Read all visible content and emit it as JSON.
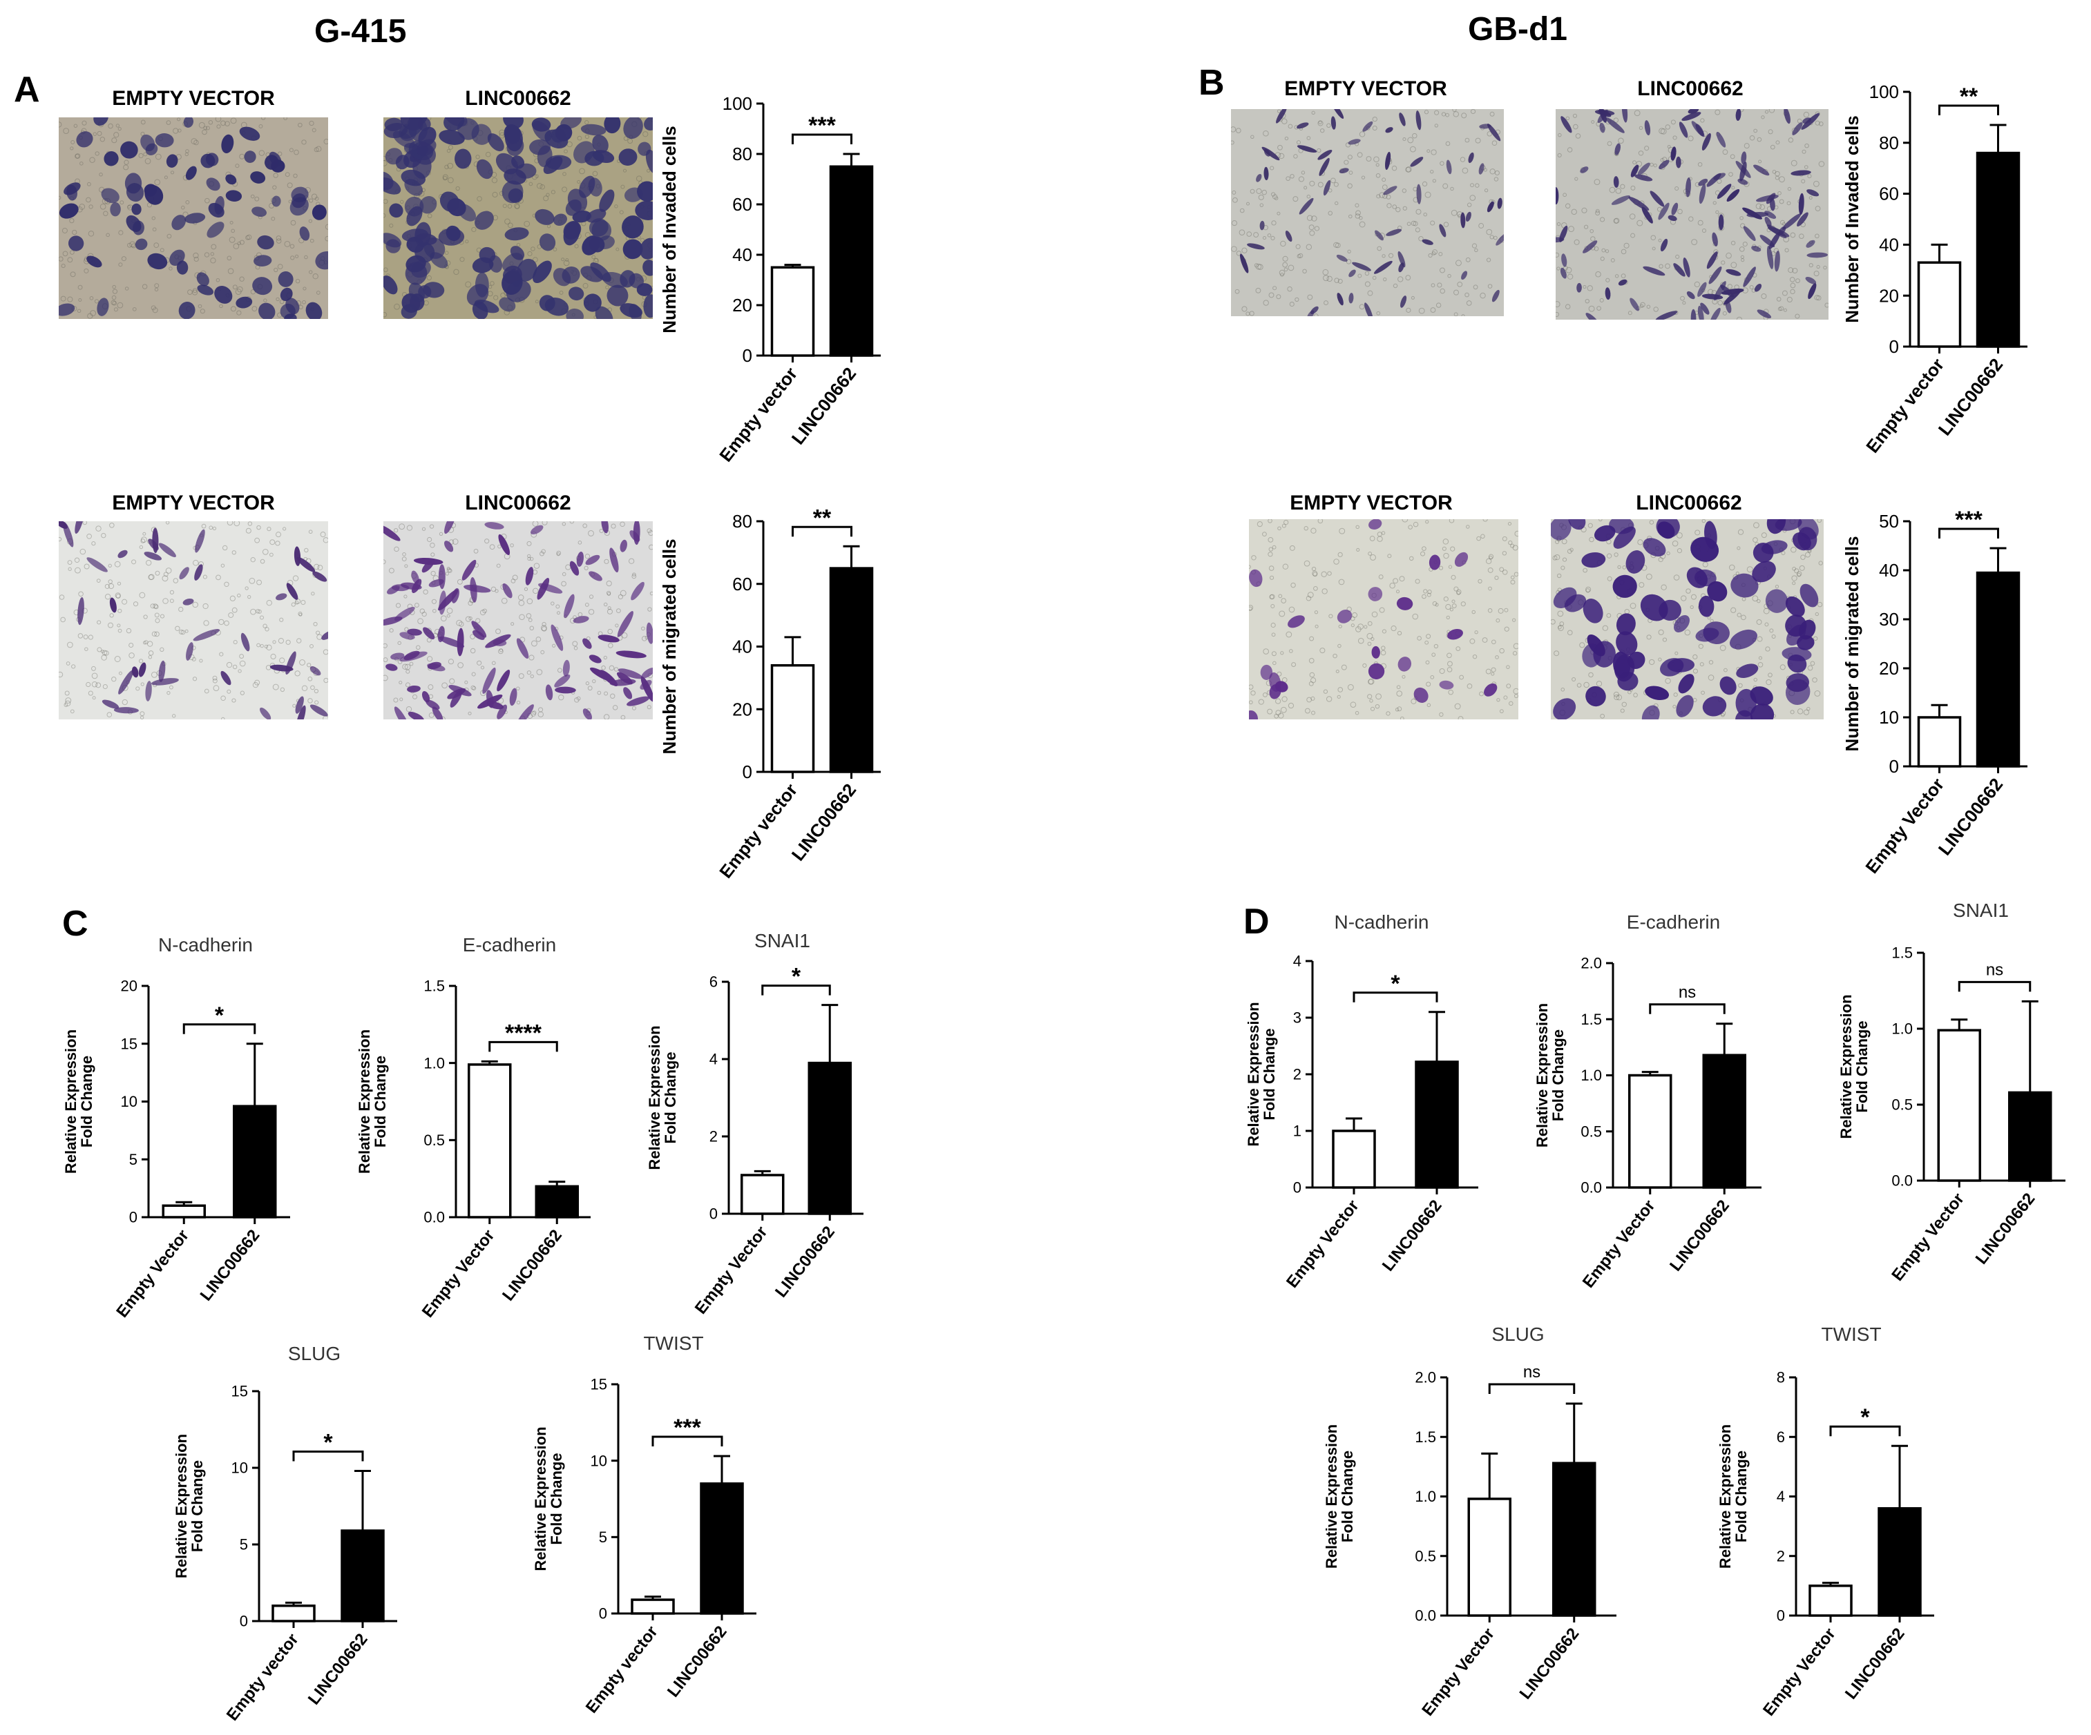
{
  "headings": {
    "left": "G-415",
    "right": "GB-d1"
  },
  "panel_letters": {
    "a": "A",
    "b": "B",
    "c": "C",
    "d": "D"
  },
  "image_captions": {
    "a_inv_empty": "EMPTY VECTOR",
    "a_inv_linc": "LINC00662",
    "a_mig_empty": "EMPTY VECTOR",
    "a_mig_linc": "LINC00662",
    "b_inv_empty": "EMPTY VECTOR",
    "b_inv_linc": "LINC00662",
    "b_mig_empty": "EMPTY VECTOR",
    "b_mig_linc": "LINC00662"
  },
  "colors": {
    "bar_empty": "#ffffff",
    "bar_linc": "#000000",
    "stroke": "#000000",
    "microscopy_bg_a": "#b3aa9a",
    "microscopy_bg_b": "#c9c9c4",
    "stain": "#3b2f6e"
  },
  "chart_data": [
    {
      "id": "A1",
      "type": "bar",
      "categories": [
        "Empty vector",
        "LINC00662"
      ],
      "values": [
        35,
        75
      ],
      "errors": [
        1,
        5
      ],
      "ylabel": "Number of Invaded cells",
      "ylim": [
        0,
        100
      ],
      "yticks": [
        0,
        20,
        40,
        60,
        80,
        100
      ],
      "significance": "***",
      "title": ""
    },
    {
      "id": "A2",
      "type": "bar",
      "categories": [
        "Empty vector",
        "LINC00662"
      ],
      "values": [
        34,
        65
      ],
      "errors": [
        9,
        7
      ],
      "ylabel": "Number of migrated cells",
      "ylim": [
        0,
        80
      ],
      "yticks": [
        0,
        20,
        40,
        60,
        80
      ],
      "significance": "**",
      "title": ""
    },
    {
      "id": "B1",
      "type": "bar",
      "categories": [
        "Empty vector",
        "LINC00662"
      ],
      "values": [
        33,
        76
      ],
      "errors": [
        7,
        11
      ],
      "ylabel": "Number of Invaded cells",
      "ylim": [
        0,
        100
      ],
      "yticks": [
        0,
        20,
        40,
        60,
        80,
        100
      ],
      "significance": "**",
      "title": ""
    },
    {
      "id": "B2",
      "type": "bar",
      "categories": [
        "Empty Vector",
        "LINC00662"
      ],
      "values": [
        10,
        39.5
      ],
      "errors": [
        2.5,
        5
      ],
      "ylabel": "Number of migrated cells",
      "ylim": [
        0,
        50
      ],
      "yticks": [
        0,
        10,
        20,
        30,
        40,
        50
      ],
      "significance": "***",
      "title": ""
    },
    {
      "id": "C1",
      "type": "bar",
      "categories": [
        "Empty Vector",
        "LINC00662"
      ],
      "values": [
        1,
        9.6
      ],
      "errors": [
        0.3,
        5.4
      ],
      "ylabel": "Relative Expression|Fold Change",
      "ylim": [
        0,
        20
      ],
      "yticks": [
        0,
        5,
        10,
        15,
        20
      ],
      "significance": "*",
      "title": "N-cadherin"
    },
    {
      "id": "C2",
      "type": "bar",
      "categories": [
        "Empty Vector",
        "LINC00662"
      ],
      "values": [
        0.99,
        0.2
      ],
      "errors": [
        0.02,
        0.03
      ],
      "ylabel": "Relative Expression|Fold Change",
      "ylim": [
        0,
        1.5
      ],
      "yticks": [
        0,
        0.5,
        1.0,
        1.5
      ],
      "tickFormat": 1,
      "significance": "****",
      "title": "E-cadherin"
    },
    {
      "id": "C3",
      "type": "bar",
      "categories": [
        "Empty Vector",
        "LINC00662"
      ],
      "values": [
        1,
        3.9
      ],
      "errors": [
        0.1,
        1.5
      ],
      "ylabel": "Relative Expression|Fold Change",
      "ylim": [
        0,
        6
      ],
      "yticks": [
        0,
        2,
        4,
        6
      ],
      "significance": "*",
      "title": "SNAI1"
    },
    {
      "id": "C4",
      "type": "bar",
      "categories": [
        "Empty vector",
        "LINC00662"
      ],
      "values": [
        1,
        5.9
      ],
      "errors": [
        0.2,
        3.9
      ],
      "ylabel": "Relative Expression|Fold Change",
      "ylim": [
        0,
        15
      ],
      "yticks": [
        0,
        5,
        10,
        15
      ],
      "significance": "*",
      "title": "SLUG"
    },
    {
      "id": "C5",
      "type": "bar",
      "categories": [
        "Empty vector",
        "LINC00662"
      ],
      "values": [
        0.9,
        8.5
      ],
      "errors": [
        0.2,
        1.8
      ],
      "ylabel": "Relative Expression|Fold Change",
      "ylim": [
        0,
        15
      ],
      "yticks": [
        0,
        5,
        10,
        15
      ],
      "significance": "***",
      "title": "TWIST"
    },
    {
      "id": "D1",
      "type": "bar",
      "categories": [
        "Empty Vector",
        "LINC00662"
      ],
      "values": [
        1,
        2.22
      ],
      "errors": [
        0.22,
        0.88
      ],
      "ylabel": "Relative Expression|Fold Change",
      "ylim": [
        0,
        4
      ],
      "yticks": [
        0,
        1,
        2,
        3,
        4
      ],
      "significance": "*",
      "title": "N-cadherin"
    },
    {
      "id": "D2",
      "type": "bar",
      "categories": [
        "Empty Vector",
        "LINC00662"
      ],
      "values": [
        1,
        1.18
      ],
      "errors": [
        0.03,
        0.28
      ],
      "ylabel": "Relative Expression|Fold Change",
      "ylim": [
        0,
        2
      ],
      "yticks": [
        0,
        0.5,
        1.0,
        1.5,
        2.0
      ],
      "tickFormat": 1,
      "significance": "ns",
      "title": "E-cadherin"
    },
    {
      "id": "D3",
      "type": "bar",
      "categories": [
        "Empty Vector",
        "LINC00662"
      ],
      "values": [
        0.99,
        0.58
      ],
      "errors": [
        0.07,
        0.6
      ],
      "ylabel": "Relative Expression|Fold Change",
      "ylim": [
        0,
        1.5
      ],
      "yticks": [
        0,
        0.5,
        1.0,
        1.5
      ],
      "tickFormat": 1,
      "significance": "ns",
      "title": "SNAI1"
    },
    {
      "id": "D4",
      "type": "bar",
      "categories": [
        "Empty Vector",
        "LINC00662"
      ],
      "values": [
        0.98,
        1.28
      ],
      "errors": [
        0.38,
        0.5
      ],
      "ylabel": "Relative Expression|Fold Change",
      "ylim": [
        0,
        2
      ],
      "yticks": [
        0,
        0.5,
        1.0,
        1.5,
        2.0
      ],
      "tickFormat": 1,
      "significance": "ns",
      "title": "SLUG"
    },
    {
      "id": "D5",
      "type": "bar",
      "categories": [
        "Empty Vector",
        "LINC00662"
      ],
      "values": [
        1,
        3.6
      ],
      "errors": [
        0.1,
        2.1
      ],
      "ylabel": "Relative Expression|Fold Change",
      "ylim": [
        0,
        8
      ],
      "yticks": [
        0,
        2,
        4,
        6,
        8
      ],
      "significance": "*",
      "title": "TWIST"
    }
  ]
}
